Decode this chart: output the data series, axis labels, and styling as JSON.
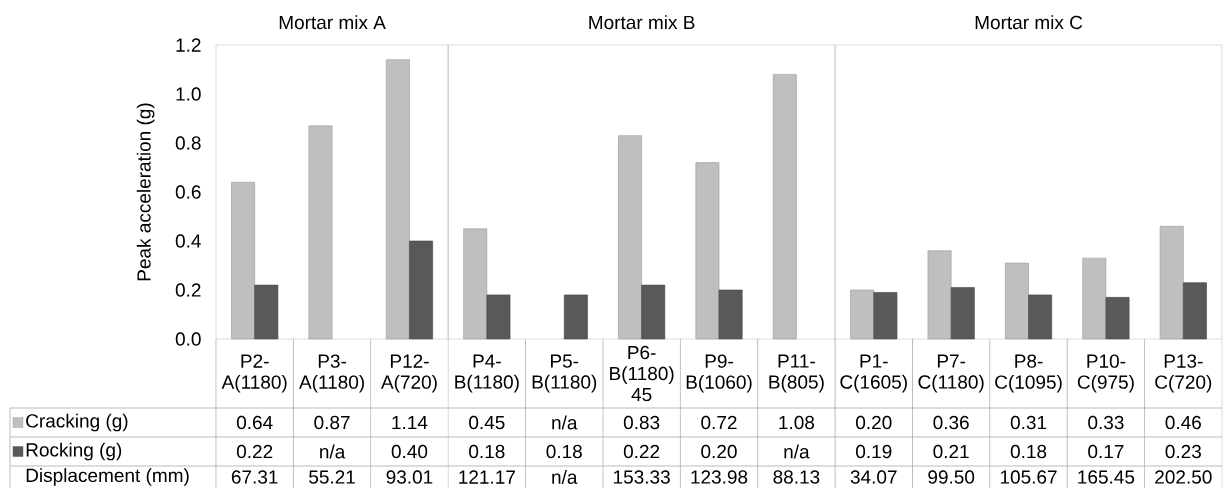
{
  "chart_data": {
    "type": "bar",
    "ylabel": "Peak acceleration (g)",
    "categories": [
      "P2-A(1180)",
      "P3-A(1180)",
      "P12-A(720)",
      "P4-B(1180)",
      "P5-B(1180)",
      "P6-B(1180) 45",
      "P9-B(1060)",
      "P11-B(805)",
      "P1-C(1605)",
      "P7-C(1180)",
      "P8-C(1095)",
      "P10-C(975)",
      "P13-C(720)"
    ],
    "series": [
      {
        "name": "Cracking (g)",
        "color": "#bfbfbf",
        "values": [
          0.64,
          0.87,
          1.14,
          0.45,
          null,
          0.83,
          0.72,
          1.08,
          0.2,
          0.36,
          0.31,
          0.33,
          0.46
        ],
        "value_labels": [
          "0.64",
          "0.87",
          "1.14",
          "0.45",
          "n/a",
          "0.83",
          "0.72",
          "1.08",
          "0.20",
          "0.36",
          "0.31",
          "0.33",
          "0.46"
        ]
      },
      {
        "name": "Rocking (g)",
        "color": "#595959",
        "values": [
          0.22,
          null,
          0.4,
          0.18,
          0.18,
          0.22,
          0.2,
          null,
          0.19,
          0.21,
          0.18,
          0.17,
          0.23
        ],
        "value_labels": [
          "0.22",
          "n/a",
          "0.40",
          "0.18",
          "0.18",
          "0.22",
          "0.20",
          "n/a",
          "0.19",
          "0.21",
          "0.18",
          "0.17",
          "0.23"
        ]
      }
    ],
    "ylim": [
      0,
      1.2
    ],
    "yticks": [
      {
        "value": 0,
        "label": "0.0"
      },
      {
        "value": 0.2,
        "label": "0.2"
      },
      {
        "value": 0.4,
        "label": "0.4"
      },
      {
        "value": 0.6,
        "label": "0.6"
      },
      {
        "value": 0.8,
        "label": "0.8"
      },
      {
        "value": 1.0,
        "label": "1.0"
      },
      {
        "value": 1.2,
        "label": "1.2"
      }
    ],
    "grid": false,
    "legend": "bottom left",
    "annotations": [
      "Mortar mix A",
      "Mortar mix B",
      "Mortar mix C",
      "Displacement (mm)",
      "67.31",
      "55.21",
      "93.01",
      "121.17",
      "n/a",
      "153.33",
      "123.98",
      "88.13",
      "34.07",
      "99.50",
      "105.67",
      "165.45",
      "202.50"
    ]
  }
}
